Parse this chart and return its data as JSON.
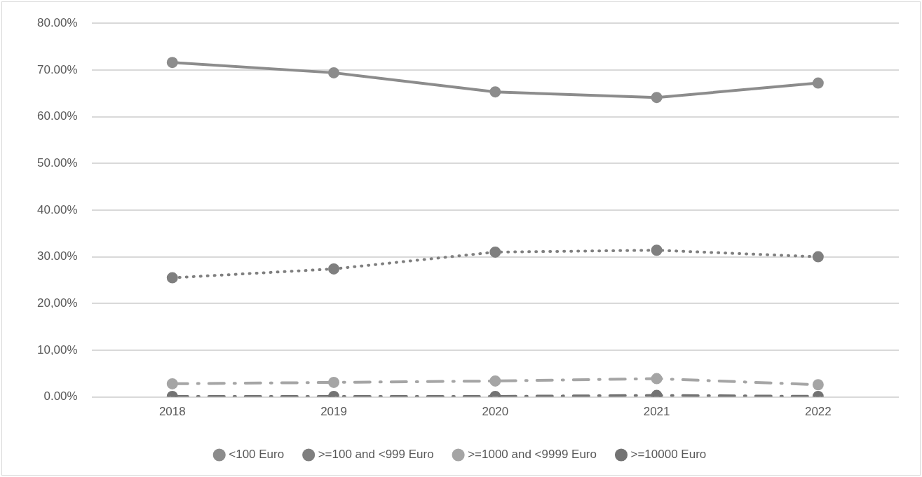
{
  "chart_data": {
    "type": "line",
    "categories": [
      "2018",
      "2019",
      "2020",
      "2021",
      "2022"
    ],
    "series": [
      {
        "name": "<100 Euro",
        "color": "#8c8c8c",
        "line_style": "solid",
        "values": [
          71.6,
          69.4,
          65.3,
          64.1,
          67.2
        ]
      },
      {
        "name": ">=100 and <999 Euro",
        "color": "#7f7f7f",
        "line_style": "dotted",
        "values": [
          25.5,
          27.4,
          31.0,
          31.4,
          30.0
        ]
      },
      {
        "name": ">=1000 and <9999 Euro",
        "color": "#a5a5a5",
        "line_style": "dashed",
        "values": [
          2.8,
          3.1,
          3.4,
          3.9,
          2.6
        ]
      },
      {
        "name": ">=10000 Euro",
        "color": "#737373",
        "line_style": "dashed",
        "values": [
          0.1,
          0.1,
          0.1,
          0.3,
          0.1
        ]
      }
    ],
    "ylim": [
      0,
      80
    ],
    "yticks": [
      {
        "value": 0,
        "label": "0.00%"
      },
      {
        "value": 10,
        "label": "10,00%"
      },
      {
        "value": 20,
        "label": "20,00%"
      },
      {
        "value": 30,
        "label": "30.00%"
      },
      {
        "value": 40,
        "label": "40.00%"
      },
      {
        "value": 50,
        "label": "50.00%"
      },
      {
        "value": 60,
        "label": "60.00%"
      },
      {
        "value": 70,
        "label": "70.00%"
      },
      {
        "value": 80,
        "label": "80.00%"
      }
    ],
    "grid": "y",
    "legend": "bottom",
    "marker": "circle"
  }
}
